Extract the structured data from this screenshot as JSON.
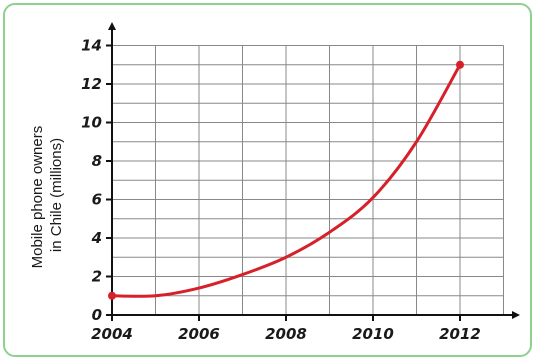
{
  "chart_data": {
    "type": "line",
    "title": "",
    "xlabel": "",
    "ylabel_lines": [
      "Mobile phone owners",
      "in Chile (millions)"
    ],
    "x_ticks": [
      "2004",
      "2006",
      "2008",
      "2010",
      "2012"
    ],
    "y_ticks": [
      "0",
      "2",
      "4",
      "6",
      "8",
      "10",
      "12",
      "14"
    ],
    "xlim": [
      2004,
      2013
    ],
    "ylim": [
      0,
      14
    ],
    "grid": true,
    "series": [
      {
        "color": "#d6202a",
        "x": [
          2004,
          2005,
          2006,
          2007,
          2008,
          2009,
          2010,
          2011,
          2012
        ],
        "y": [
          1.0,
          1.0,
          1.4,
          2.1,
          3.0,
          4.3,
          6.1,
          9.0,
          13.0
        ],
        "endpoints": [
          [
            2004,
            1.0
          ],
          [
            2012,
            13.0
          ]
        ]
      }
    ],
    "colors": {
      "frame": "#8fcf8f",
      "grid": "#888888",
      "axis": "#111111",
      "curve": "#d6202a"
    }
  }
}
